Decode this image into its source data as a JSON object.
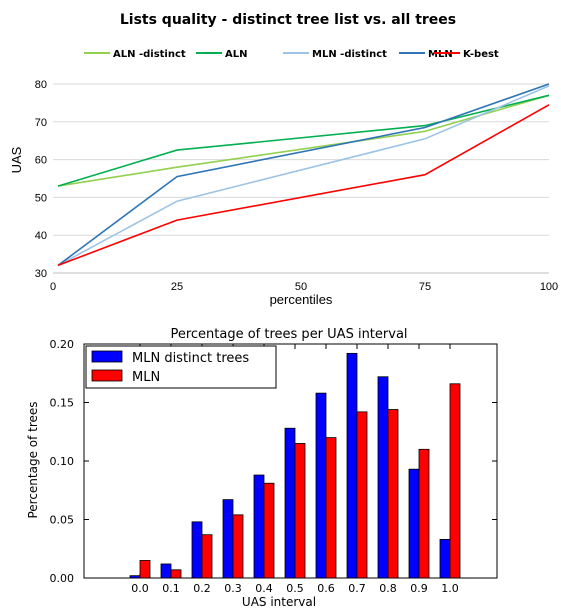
{
  "chart_data": [
    {
      "type": "line",
      "title": "Lists quality - distinct tree list vs. all trees",
      "xlabel": "percentiles",
      "ylabel": "UAS",
      "xlim": [
        0,
        100
      ],
      "ylim": [
        30,
        80
      ],
      "xticks": [
        0,
        25,
        50,
        75,
        100
      ],
      "yticks": [
        30,
        40,
        50,
        60,
        70,
        80
      ],
      "grid": true,
      "legend": "top",
      "x": [
        1,
        25,
        75,
        100
      ],
      "series": [
        {
          "name": "ALN -distinct",
          "color": "#92d050",
          "values": [
            53,
            58,
            67.5,
            77
          ]
        },
        {
          "name": "ALN",
          "color": "#00b050",
          "values": [
            53,
            62.5,
            69,
            77
          ]
        },
        {
          "name": "MLN -distinct",
          "color": "#9dc3e6",
          "values": [
            32,
            49,
            65.5,
            79.5
          ]
        },
        {
          "name": "MLN",
          "color": "#2e75b6",
          "values": [
            32,
            55.5,
            68.5,
            80
          ]
        },
        {
          "name": "K-best",
          "color": "#ff0000",
          "values": [
            32,
            44,
            56,
            74.5
          ]
        }
      ]
    },
    {
      "type": "bar",
      "title": "Percentage of trees per UAS interval",
      "xlabel": "UAS interval",
      "ylabel": "Percentage of trees",
      "categories": [
        "0.0",
        "0.1",
        "0.2",
        "0.3",
        "0.4",
        "0.5",
        "0.6",
        "0.7",
        "0.8",
        "0.9",
        "1.0"
      ],
      "ylim": [
        0,
        0.2
      ],
      "yticks": [
        "0.00",
        "0.05",
        "0.10",
        "0.15",
        "0.20"
      ],
      "grid": false,
      "legend": "top-left",
      "series": [
        {
          "name": "MLN distinct trees",
          "color": "#0000ff",
          "values": [
            0.002,
            0.012,
            0.048,
            0.067,
            0.088,
            0.128,
            0.158,
            0.192,
            0.172,
            0.093,
            0.033
          ]
        },
        {
          "name": "MLN",
          "color": "#ff0000",
          "values": [
            0.015,
            0.007,
            0.037,
            0.054,
            0.081,
            0.115,
            0.12,
            0.142,
            0.144,
            0.11,
            0.166
          ]
        }
      ]
    }
  ]
}
